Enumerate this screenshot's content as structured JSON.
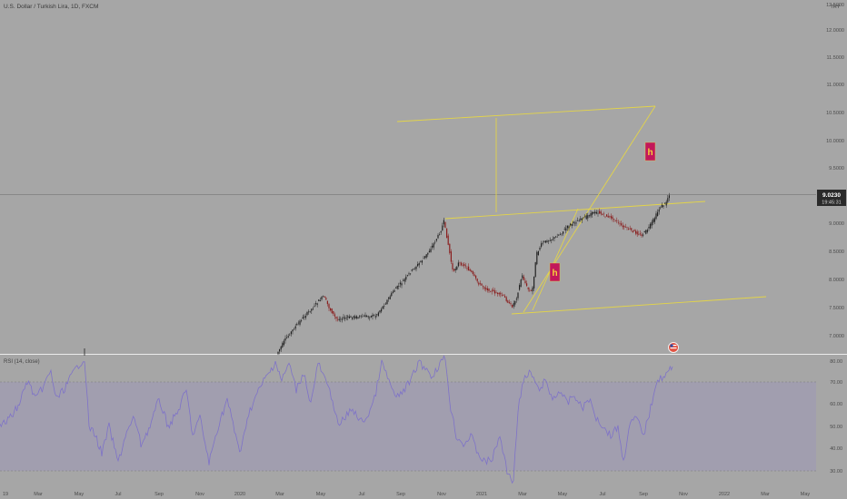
{
  "header": {
    "title": "U.S. Dollar / Turkish Lira, 1D, FXCM"
  },
  "currency_badge": "TRY",
  "price_axis": {
    "labels": [
      "12.5000",
      "12.0000",
      "11.5000",
      "11.0000",
      "10.5000",
      "10.0000",
      "9.5000",
      "9.0000",
      "8.5000",
      "8.0000",
      "7.5000",
      "7.0000",
      "6.5000"
    ],
    "current_price": "9.0230",
    "countdown": "19:45:31"
  },
  "rsi": {
    "title": "RSI (14, close)",
    "labels": [
      "80.00",
      "70.00",
      "60.00",
      "50.00",
      "40.00",
      "30.00"
    ],
    "upper_band": 70,
    "lower_band": 30
  },
  "time_axis": {
    "labels": [
      "19",
      "Mar",
      "May",
      "Jul",
      "Sep",
      "Nov",
      "2020",
      "Mar",
      "May",
      "Jul",
      "Sep",
      "Nov",
      "2021",
      "Mar",
      "May",
      "Jul",
      "Sep",
      "Nov",
      "2022",
      "Mar",
      "May"
    ]
  },
  "annotations": [
    {
      "label": "h"
    },
    {
      "label": "h"
    }
  ],
  "colors": {
    "background": "#a6a6a6",
    "channel_lines": "#e3d449",
    "rsi_line": "#7e72c8",
    "rsi_band": "#9d98b7",
    "annotation_box": "#c2185b",
    "annotation_text": "#f5d33a",
    "candle_up": "#222222",
    "candle_down": "#8a1e1e"
  },
  "chart_data": {
    "type": "candlestick",
    "symbol": "USDTRY",
    "price_series_approx": [
      {
        "x": "2020-03",
        "y": 6.4
      },
      {
        "x": "2020-05",
        "y": 7.1
      },
      {
        "x": "2020-07",
        "y": 6.86
      },
      {
        "x": "2020-09",
        "y": 7.6
      },
      {
        "x": "2020-11",
        "y": 8.6
      },
      {
        "x": "2021-01",
        "y": 7.4
      },
      {
        "x": "2021-02",
        "y": 7.0
      },
      {
        "x": "2021-04",
        "y": 8.2
      },
      {
        "x": "2021-06",
        "y": 8.7
      },
      {
        "x": "2021-08",
        "y": 8.4
      },
      {
        "x": "2021-09",
        "y": 9.02
      }
    ],
    "rsi_series_approx": [
      {
        "x": "2019-03",
        "y": 40
      },
      {
        "x": "2019-05",
        "y": 82
      },
      {
        "x": "2019-07",
        "y": 32
      },
      {
        "x": "2019-09",
        "y": 40
      },
      {
        "x": "2019-11",
        "y": 42
      },
      {
        "x": "2020-03",
        "y": 82
      },
      {
        "x": "2020-06",
        "y": 40
      },
      {
        "x": "2020-09",
        "y": 72
      },
      {
        "x": "2020-11",
        "y": 82
      },
      {
        "x": "2021-01",
        "y": 30
      },
      {
        "x": "2021-03",
        "y": 28
      },
      {
        "x": "2021-04",
        "y": 70
      },
      {
        "x": "2021-07",
        "y": 50
      },
      {
        "x": "2021-09",
        "y": 76
      }
    ],
    "ylim": [
      6.25,
      12.7
    ],
    "rsi_ylim": [
      25,
      85
    ]
  }
}
